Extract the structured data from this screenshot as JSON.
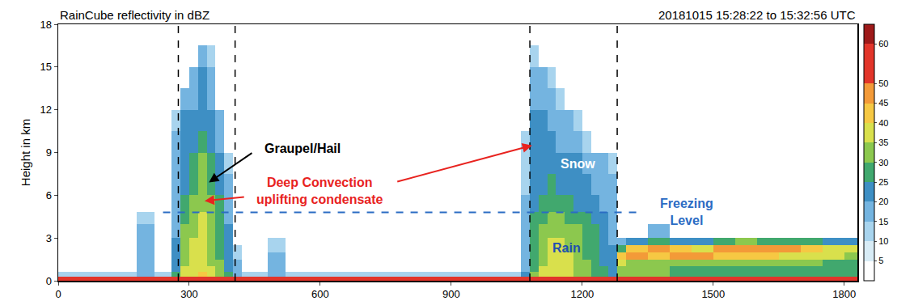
{
  "chart_data": {
    "type": "heatmap",
    "title": "RainCube reflectivity in dBZ",
    "subtitle": "20181015 15:28:22 to 15:32:56 UTC",
    "y_label": "Height in km",
    "xlim": [
      0,
      1830
    ],
    "xticks": [
      0,
      300,
      600,
      900,
      1200,
      1500,
      1800
    ],
    "ylim": [
      0,
      18
    ],
    "yticks": [
      0,
      3,
      6,
      9,
      12,
      15,
      18
    ],
    "zlim": [
      0,
      65
    ],
    "zticks": [
      5,
      10,
      15,
      20,
      25,
      30,
      35,
      40,
      45,
      50,
      60
    ],
    "grid": false,
    "x_edges": [
      0,
      180,
      220,
      260,
      280,
      300,
      320,
      340,
      360,
      380,
      400,
      420,
      480,
      520,
      1060,
      1080,
      1100,
      1120,
      1140,
      1160,
      1180,
      1200,
      1220,
      1240,
      1260,
      1280,
      1300,
      1350,
      1400,
      1450,
      1500,
      1550,
      1600,
      1650,
      1700,
      1750,
      1800,
      1830
    ],
    "y_edges": [
      0,
      0.3,
      0.6,
      1,
      1.5,
      2,
      2.5,
      3,
      4,
      4.8,
      6,
      7.5,
      9,
      10.5,
      12,
      13.5,
      15,
      16.5,
      18
    ],
    "z_by_column": [
      [
        50,
        12,
        null,
        null,
        null,
        null,
        null,
        null,
        null,
        null,
        null,
        null,
        null,
        null,
        null,
        null,
        null,
        null
      ],
      [
        50,
        15,
        15,
        18,
        18,
        18,
        15,
        15,
        12,
        null,
        null,
        null,
        null,
        null,
        null,
        null,
        null,
        null
      ],
      [
        50,
        12,
        null,
        null,
        null,
        null,
        null,
        null,
        null,
        null,
        null,
        null,
        null,
        null,
        null,
        null,
        null,
        null
      ],
      [
        50,
        25,
        22,
        22,
        20,
        20,
        20,
        18,
        18,
        18,
        15,
        15,
        15,
        12,
        null,
        null,
        null,
        null
      ],
      [
        55,
        35,
        35,
        33,
        33,
        32,
        30,
        30,
        28,
        25,
        22,
        22,
        20,
        20,
        15,
        null,
        null,
        null
      ],
      [
        55,
        38,
        38,
        37,
        37,
        36,
        35,
        33,
        32,
        30,
        28,
        25,
        22,
        20,
        18,
        15,
        null,
        null
      ],
      [
        55,
        40,
        38,
        38,
        37,
        37,
        36,
        35,
        35,
        33,
        33,
        30,
        25,
        22,
        22,
        20,
        18,
        null
      ],
      [
        55,
        35,
        35,
        33,
        33,
        32,
        32,
        30,
        30,
        30,
        28,
        25,
        22,
        20,
        18,
        15,
        12,
        null
      ],
      [
        50,
        32,
        30,
        30,
        28,
        28,
        27,
        27,
        25,
        25,
        22,
        20,
        18,
        15,
        null,
        null,
        null,
        null
      ],
      [
        50,
        25,
        22,
        22,
        22,
        20,
        20,
        20,
        18,
        18,
        15,
        12,
        null,
        null,
        null,
        null,
        null,
        null
      ],
      [
        50,
        18,
        15,
        15,
        12,
        12,
        null,
        null,
        null,
        null,
        null,
        null,
        null,
        null,
        null,
        null,
        null,
        null
      ],
      [
        50,
        12,
        null,
        null,
        null,
        null,
        null,
        null,
        null,
        null,
        null,
        null,
        null,
        null,
        null,
        null,
        null,
        null
      ],
      [
        50,
        15,
        15,
        15,
        15,
        12,
        12,
        null,
        null,
        null,
        null,
        null,
        null,
        null,
        null,
        null,
        null,
        null
      ],
      [
        50,
        12,
        null,
        null,
        null,
        null,
        null,
        null,
        null,
        null,
        null,
        null,
        null,
        null,
        null,
        null,
        null,
        null
      ],
      [
        50,
        20,
        18,
        18,
        18,
        18,
        15,
        15,
        15,
        15,
        12,
        12,
        12,
        null,
        null,
        null,
        null,
        null
      ],
      [
        52,
        30,
        28,
        28,
        28,
        28,
        27,
        27,
        25,
        22,
        20,
        20,
        20,
        20,
        18,
        18,
        12,
        null
      ],
      [
        55,
        35,
        35,
        33,
        33,
        33,
        32,
        32,
        28,
        25,
        22,
        22,
        20,
        20,
        18,
        15,
        null,
        null
      ],
      [
        55,
        37,
        36,
        36,
        36,
        35,
        35,
        33,
        30,
        28,
        25,
        22,
        20,
        18,
        15,
        12,
        null,
        null
      ],
      [
        55,
        36,
        36,
        36,
        35,
        35,
        35,
        33,
        30,
        25,
        22,
        20,
        18,
        15,
        12,
        null,
        null,
        null
      ],
      [
        55,
        35,
        35,
        35,
        35,
        33,
        33,
        32,
        28,
        25,
        22,
        20,
        18,
        15,
        null,
        null,
        null,
        null
      ],
      [
        55,
        33,
        33,
        32,
        32,
        32,
        30,
        30,
        27,
        22,
        22,
        20,
        15,
        12,
        null,
        null,
        null,
        null
      ],
      [
        52,
        30,
        30,
        30,
        28,
        28,
        27,
        27,
        25,
        22,
        20,
        18,
        12,
        null,
        null,
        null,
        null,
        null
      ],
      [
        50,
        27,
        27,
        27,
        25,
        25,
        25,
        25,
        22,
        20,
        18,
        15,
        null,
        null,
        null,
        null,
        null,
        null
      ],
      [
        50,
        25,
        25,
        22,
        22,
        22,
        22,
        20,
        20,
        18,
        18,
        15,
        null,
        null,
        null,
        null,
        null,
        null
      ],
      [
        50,
        22,
        22,
        20,
        20,
        20,
        18,
        18,
        18,
        18,
        15,
        12,
        null,
        null,
        null,
        null,
        null,
        null
      ],
      [
        55,
        30,
        30,
        35,
        40,
        28,
        15,
        null,
        null,
        null,
        null,
        null,
        null,
        null,
        null,
        null,
        null,
        null
      ],
      [
        55,
        30,
        30,
        33,
        45,
        40,
        20,
        null,
        null,
        null,
        null,
        null,
        null,
        null,
        null,
        null,
        null,
        null
      ],
      [
        55,
        30,
        30,
        32,
        40,
        45,
        25,
        15,
        null,
        null,
        null,
        null,
        null,
        null,
        null,
        null,
        null,
        null
      ],
      [
        55,
        28,
        28,
        30,
        45,
        40,
        22,
        null,
        null,
        null,
        null,
        null,
        null,
        null,
        null,
        null,
        null,
        null
      ],
      [
        55,
        28,
        28,
        30,
        45,
        38,
        20,
        null,
        null,
        null,
        null,
        null,
        null,
        null,
        null,
        null,
        null,
        null
      ],
      [
        55,
        28,
        28,
        30,
        42,
        45,
        25,
        null,
        null,
        null,
        null,
        null,
        null,
        null,
        null,
        null,
        null,
        null
      ],
      [
        55,
        28,
        28,
        30,
        40,
        45,
        30,
        null,
        null,
        null,
        null,
        null,
        null,
        null,
        null,
        null,
        null,
        null
      ],
      [
        55,
        28,
        28,
        30,
        40,
        45,
        28,
        null,
        null,
        null,
        null,
        null,
        null,
        null,
        null,
        null,
        null,
        null
      ],
      [
        55,
        28,
        28,
        30,
        38,
        45,
        28,
        null,
        null,
        null,
        null,
        null,
        null,
        null,
        null,
        null,
        null,
        null
      ],
      [
        55,
        28,
        28,
        30,
        38,
        42,
        25,
        null,
        null,
        null,
        null,
        null,
        null,
        null,
        null,
        null,
        null,
        null
      ],
      [
        55,
        28,
        28,
        28,
        35,
        38,
        22,
        null,
        null,
        null,
        null,
        null,
        null,
        null,
        null,
        null,
        null,
        null
      ],
      [
        55,
        28,
        28,
        28,
        32,
        35,
        20,
        null,
        null,
        null,
        null,
        null,
        null,
        null,
        null,
        null,
        null,
        null
      ]
    ],
    "vlines": [
      275,
      405,
      1080,
      1280
    ],
    "freezing_level": {
      "y": 4.8,
      "x": [
        240,
        1340
      ],
      "color": "#2b6cc4"
    },
    "annotations": [
      {
        "text": "Graupel/Hail",
        "x": 560,
        "y": 9.3,
        "color": "#000000",
        "arrows": [
          {
            "from": [
              450,
              9.1
            ],
            "to": [
              345,
              6.9
            ]
          }
        ]
      },
      {
        "text": "Deep Convection\nuplifting condensate",
        "x": 600,
        "y": 6.3,
        "color": "#e8231f",
        "arrows": [
          {
            "from": [
              432,
              5.9
            ],
            "to": [
              335,
              5.6
            ]
          },
          {
            "from": [
              770,
              6.9
            ],
            "to": [
              1085,
              9.5
            ]
          }
        ]
      },
      {
        "text": "Snow",
        "x": 1190,
        "y": 8.2,
        "color": "#ffffff",
        "arrows": []
      },
      {
        "text": "Rain",
        "x": 1165,
        "y": 2.3,
        "color": "#1f4fb0",
        "arrows": []
      },
      {
        "text": "Freezing\nLevel",
        "x": 1440,
        "y": 4.8,
        "color": "#2b6cc4",
        "arrows": []
      }
    ]
  }
}
